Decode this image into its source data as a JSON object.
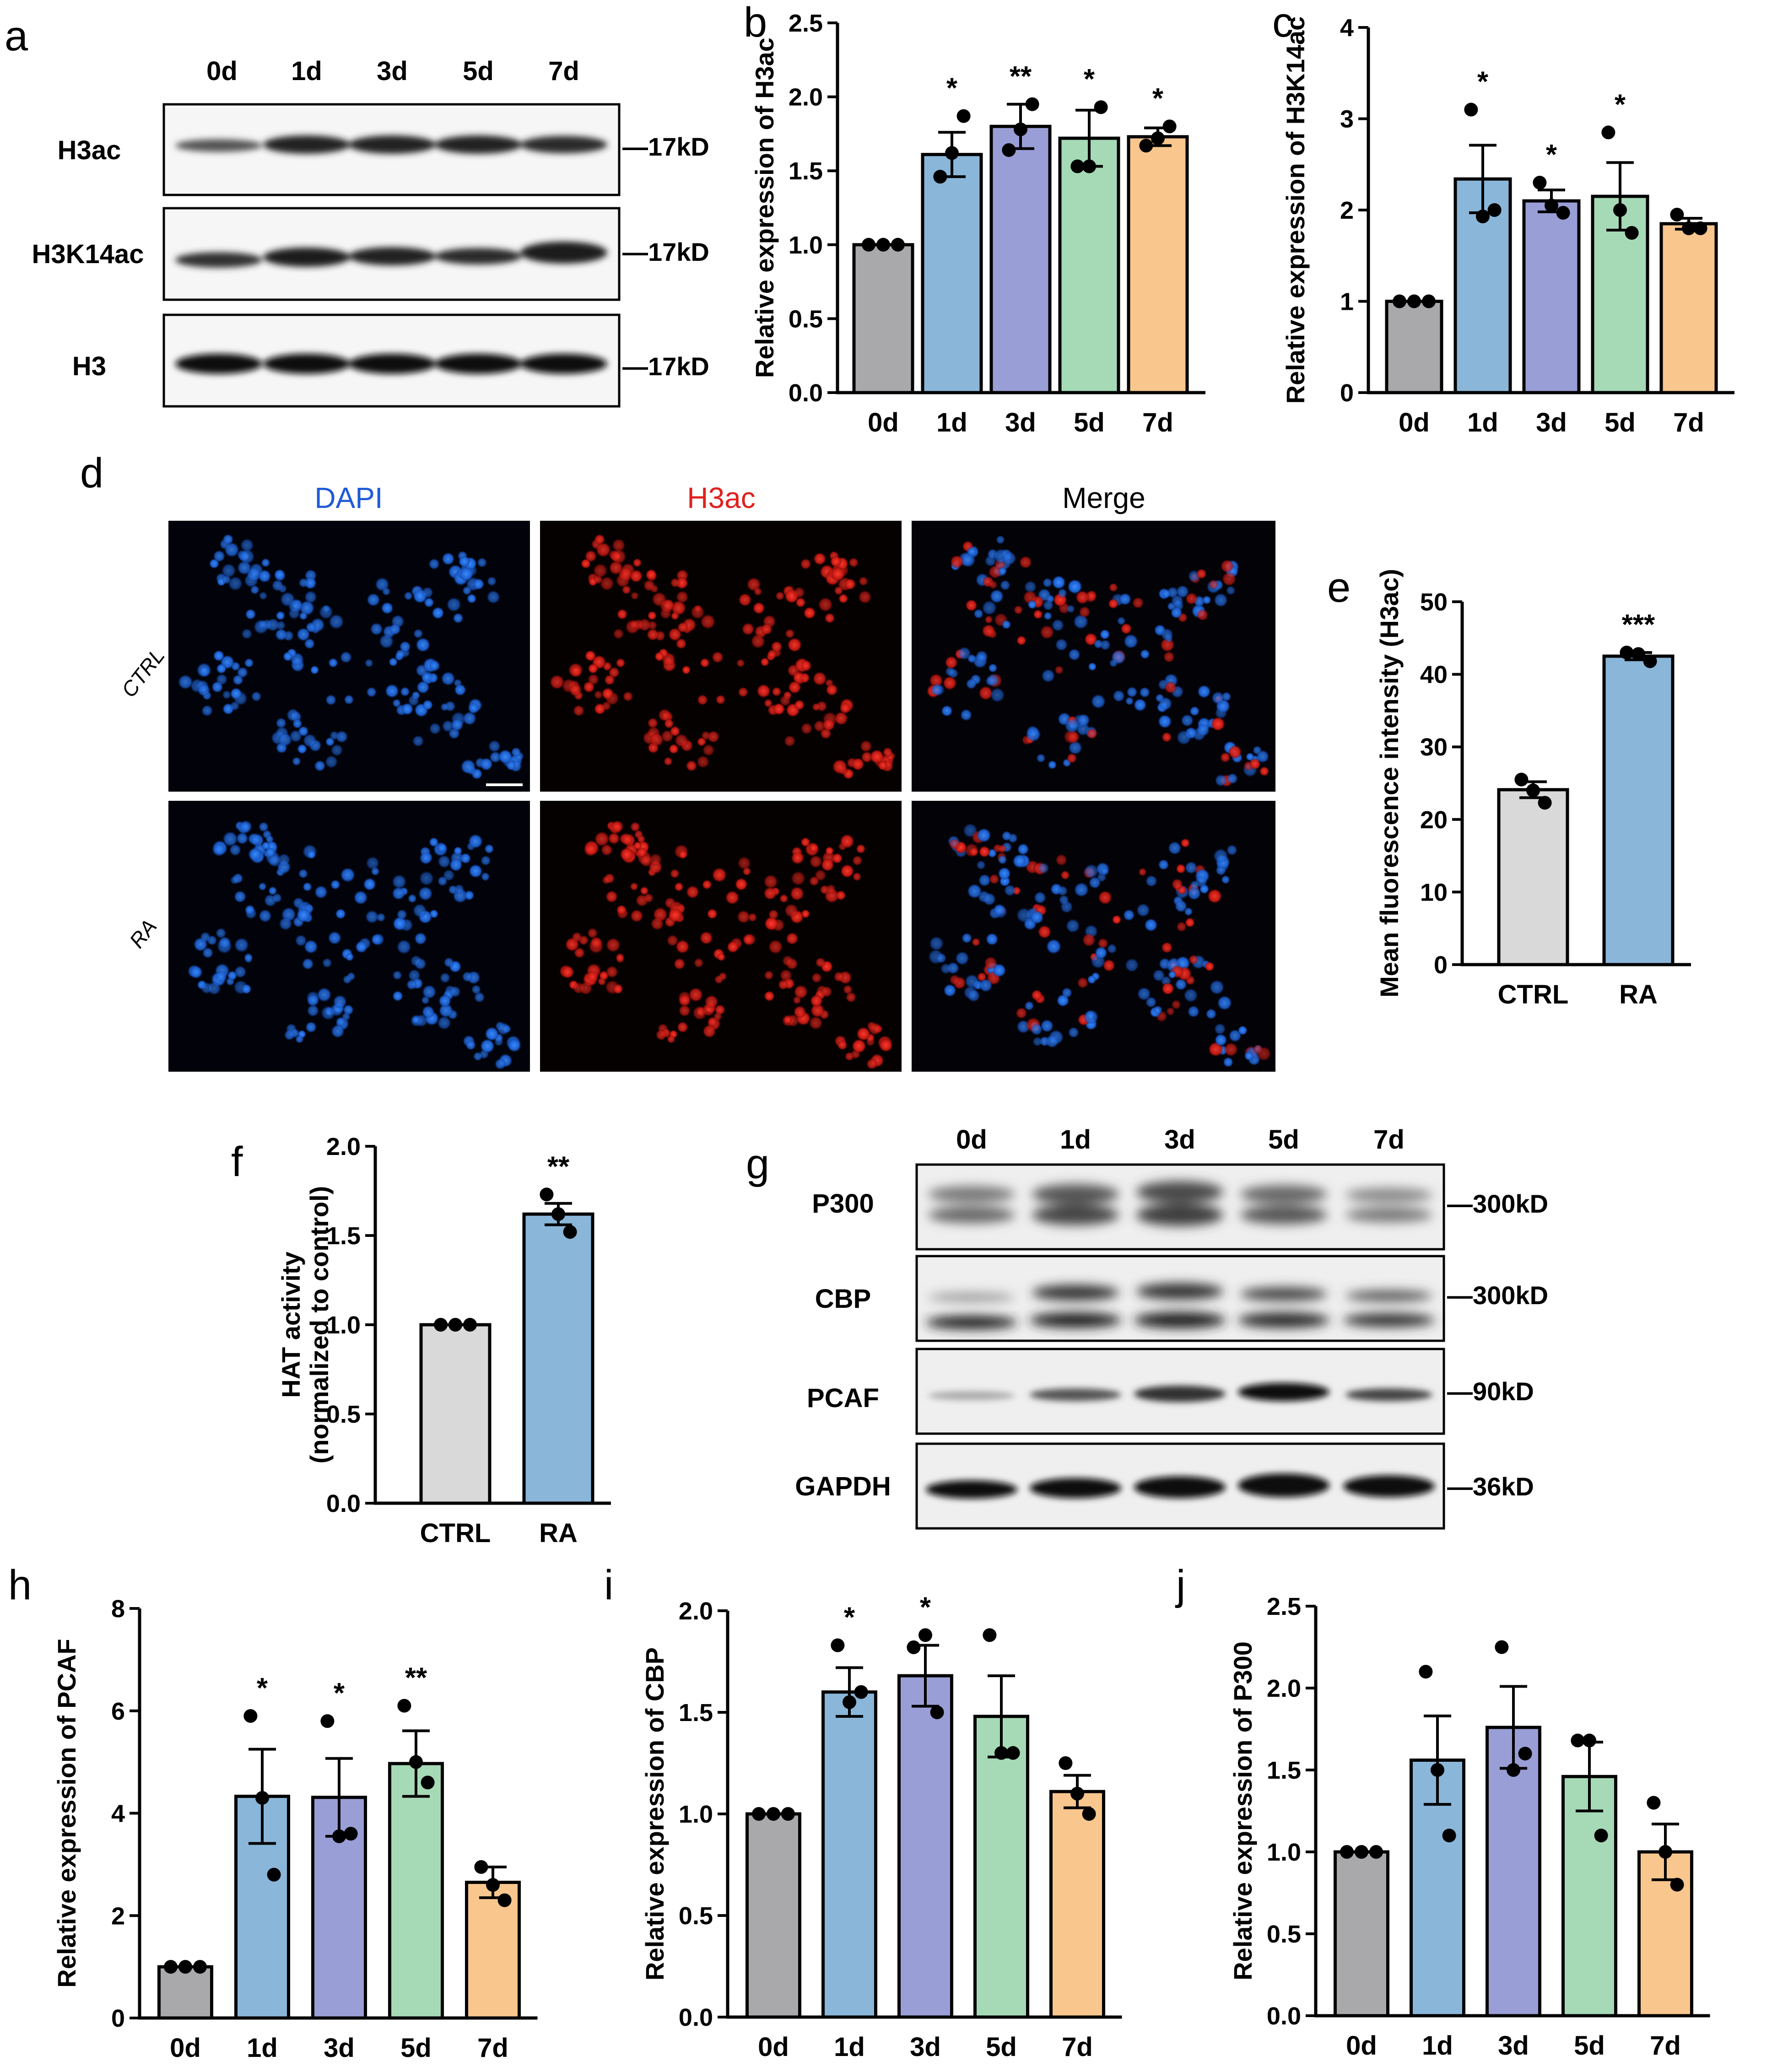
{
  "panel_letters": {
    "a": "a",
    "b": "b",
    "c": "c",
    "d": "d",
    "e": "e",
    "f": "f",
    "g": "g",
    "h": "h",
    "i": "i",
    "j": "j"
  },
  "colors": {
    "0d": "#A9A9AC",
    "1d": "#8AB6D9",
    "3d": "#9A9ED6",
    "5d": "#A6DAB6",
    "7d": "#F9C68E",
    "CTRL": "#D9D9D9",
    "RA": "#8AB6D9"
  },
  "blots": {
    "a": {
      "lanes": [
        "0d",
        "1d",
        "3d",
        "5d",
        "7d"
      ],
      "rows": [
        {
          "label": "H3ac",
          "kd": "—17kD"
        },
        {
          "label": "H3K14ac",
          "kd": "—17kD"
        },
        {
          "label": "H3",
          "kd": "—17kD"
        }
      ]
    },
    "g": {
      "lanes": [
        "0d",
        "1d",
        "3d",
        "5d",
        "7d"
      ],
      "rows": [
        {
          "label": "P300",
          "kd": "—300kD"
        },
        {
          "label": "CBP",
          "kd": "—300kD"
        },
        {
          "label": "PCAF",
          "kd": "—90kD"
        },
        {
          "label": "GAPDH",
          "kd": "—36kD"
        }
      ]
    }
  },
  "micrographs": {
    "columns": [
      "DAPI",
      "H3ac",
      "Merge"
    ],
    "column_colors": [
      "#1F5BD8",
      "#E0201E",
      "#000000"
    ],
    "rows": [
      "CTRL",
      "RA"
    ]
  },
  "chart_data": [
    {
      "id": "b",
      "type": "bar",
      "categories": [
        "0d",
        "1d",
        "3d",
        "5d",
        "7d"
      ],
      "values": [
        1.0,
        1.61,
        1.8,
        1.72,
        1.73
      ],
      "sem": [
        0.0,
        0.15,
        0.15,
        0.19,
        0.06
      ],
      "points": [
        [
          1,
          1,
          1
        ],
        [
          1.46,
          1.62,
          1.87
        ],
        [
          1.64,
          1.78,
          1.95
        ],
        [
          1.53,
          1.53,
          1.93
        ],
        [
          1.67,
          1.72,
          1.8
        ]
      ],
      "significance": [
        "",
        "*",
        "**",
        "*",
        "*"
      ],
      "ylabel": "Relative expression of H3ac",
      "ylim": [
        0,
        2.5
      ],
      "yticks": [
        "0.0",
        "0.5",
        "1.0",
        "1.5",
        "2.0",
        "2.5"
      ]
    },
    {
      "id": "c",
      "type": "bar",
      "categories": [
        "0d",
        "1d",
        "3d",
        "5d",
        "7d"
      ],
      "values": [
        1.0,
        2.34,
        2.1,
        2.15,
        1.85
      ],
      "sem": [
        0.0,
        0.37,
        0.12,
        0.37,
        0.06
      ],
      "points": [
        [
          1,
          1,
          1
        ],
        [
          3.1,
          1.93,
          2.0
        ],
        [
          2.3,
          2.05,
          1.97
        ],
        [
          2.85,
          2.0,
          1.75
        ],
        [
          1.95,
          1.8,
          1.8
        ]
      ],
      "significance": [
        "",
        "*",
        "*",
        "*",
        ""
      ],
      "ylabel": "Relative expression of H3K14ac",
      "ylim": [
        0,
        4
      ],
      "yticks": [
        "0",
        "1",
        "2",
        "3",
        "4"
      ]
    },
    {
      "id": "e",
      "type": "bar",
      "categories": [
        "CTRL",
        "RA"
      ],
      "values": [
        24.1,
        42.5
      ],
      "sem": [
        1.1,
        0.5
      ],
      "points": [
        [
          25.5,
          24.0,
          22.3
        ],
        [
          43.0,
          42.8,
          41.8
        ]
      ],
      "significance": [
        "",
        "***"
      ],
      "ylabel": "Mean fluorescence intensity (H3ac)",
      "ylim": [
        0,
        50
      ],
      "yticks": [
        "0",
        "10",
        "20",
        "30",
        "40",
        "50"
      ]
    },
    {
      "id": "f",
      "type": "bar",
      "categories": [
        "CTRL",
        "RA"
      ],
      "values": [
        1.0,
        1.62
      ],
      "sem": [
        0.0,
        0.06
      ],
      "points": [
        [
          1,
          1,
          1
        ],
        [
          1.73,
          1.62,
          1.52
        ]
      ],
      "significance": [
        "",
        "**"
      ],
      "ylabel": [
        "HAT activity",
        "(normalized to control)"
      ],
      "ylim": [
        0,
        2.0
      ],
      "yticks": [
        "0.0",
        "0.5",
        "1.0",
        "1.5",
        "2.0"
      ]
    },
    {
      "id": "h",
      "type": "bar",
      "categories": [
        "0d",
        "1d",
        "3d",
        "5d",
        "7d"
      ],
      "values": [
        1.0,
        4.33,
        4.31,
        4.97,
        2.65
      ],
      "sem": [
        0.0,
        0.92,
        0.76,
        0.64,
        0.3
      ],
      "points": [
        [
          1,
          1,
          1
        ],
        [
          5.9,
          4.3,
          2.8
        ],
        [
          5.8,
          3.55,
          3.6
        ],
        [
          6.1,
          5.0,
          4.6
        ],
        [
          2.95,
          2.6,
          2.3
        ]
      ],
      "significance": [
        "",
        "*",
        "*",
        "**",
        ""
      ],
      "ylabel": "Relative expression of PCAF",
      "ylim": [
        0,
        8
      ],
      "yticks": [
        "0",
        "2",
        "4",
        "6",
        "8"
      ]
    },
    {
      "id": "i",
      "type": "bar",
      "categories": [
        "0d",
        "1d",
        "3d",
        "5d",
        "7d"
      ],
      "values": [
        1.0,
        1.6,
        1.68,
        1.48,
        1.11
      ],
      "sem": [
        0.0,
        0.12,
        0.15,
        0.2,
        0.08
      ],
      "points": [
        [
          1,
          1,
          1
        ],
        [
          1.83,
          1.55,
          1.6
        ],
        [
          1.82,
          1.88,
          1.5
        ],
        [
          1.88,
          1.3,
          1.3
        ],
        [
          1.25,
          1.1,
          1.0
        ]
      ],
      "significance": [
        "",
        "*",
        "*",
        "",
        ""
      ],
      "ylabel": "Relative expression of CBP",
      "ylim": [
        0,
        2.0
      ],
      "yticks": [
        "0.0",
        "0.5",
        "1.0",
        "1.5",
        "2.0"
      ]
    },
    {
      "id": "j",
      "type": "bar",
      "categories": [
        "0d",
        "1d",
        "3d",
        "5d",
        "7d"
      ],
      "values": [
        1.0,
        1.56,
        1.76,
        1.46,
        1.0
      ],
      "sem": [
        0.0,
        0.27,
        0.25,
        0.21,
        0.17
      ],
      "points": [
        [
          1,
          1,
          1
        ],
        [
          2.1,
          1.5,
          1.1
        ],
        [
          2.25,
          1.5,
          1.6
        ],
        [
          1.68,
          1.68,
          1.1
        ],
        [
          1.3,
          1.0,
          0.8
        ]
      ],
      "significance": [
        "",
        "",
        "",
        "",
        ""
      ],
      "ylabel": "Relative expression of P300",
      "ylim": [
        0,
        2.5
      ],
      "yticks": [
        "0.0",
        "0.5",
        "1.0",
        "1.5",
        "2.0",
        "2.5"
      ]
    }
  ]
}
